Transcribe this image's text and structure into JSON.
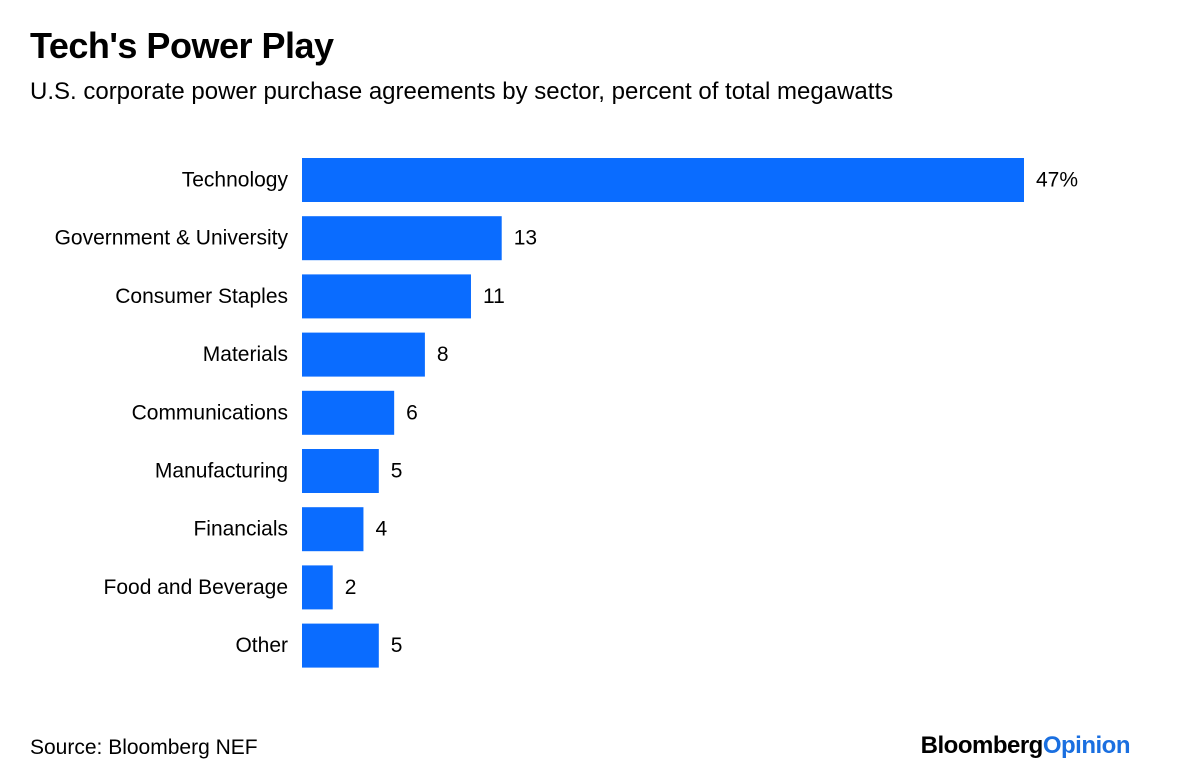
{
  "title": "Tech's Power Play",
  "subtitle": "U.S. corporate power purchase agreements by sector, percent of total megawatts",
  "source": "Source: Bloomberg NEF",
  "brand": {
    "part1": "Bloomberg",
    "part2": "Opinion"
  },
  "colors": {
    "bar": "#0a6cff",
    "brand_accent": "#1a6fe0"
  },
  "chart_data": {
    "type": "bar",
    "orientation": "horizontal",
    "categories": [
      "Technology",
      "Government & University",
      "Consumer Staples",
      "Materials",
      "Communications",
      "Manufacturing",
      "Financials",
      "Food and Beverage",
      "Other"
    ],
    "values": [
      47,
      13,
      11,
      8,
      6,
      5,
      4,
      2,
      5
    ],
    "value_labels": [
      "47%",
      "13",
      "11",
      "8",
      "6",
      "5",
      "4",
      "2",
      "5"
    ],
    "title": "Tech's Power Play",
    "xlabel": "",
    "ylabel": "",
    "xlim": [
      0,
      47
    ],
    "grid": false,
    "legend": "none"
  }
}
